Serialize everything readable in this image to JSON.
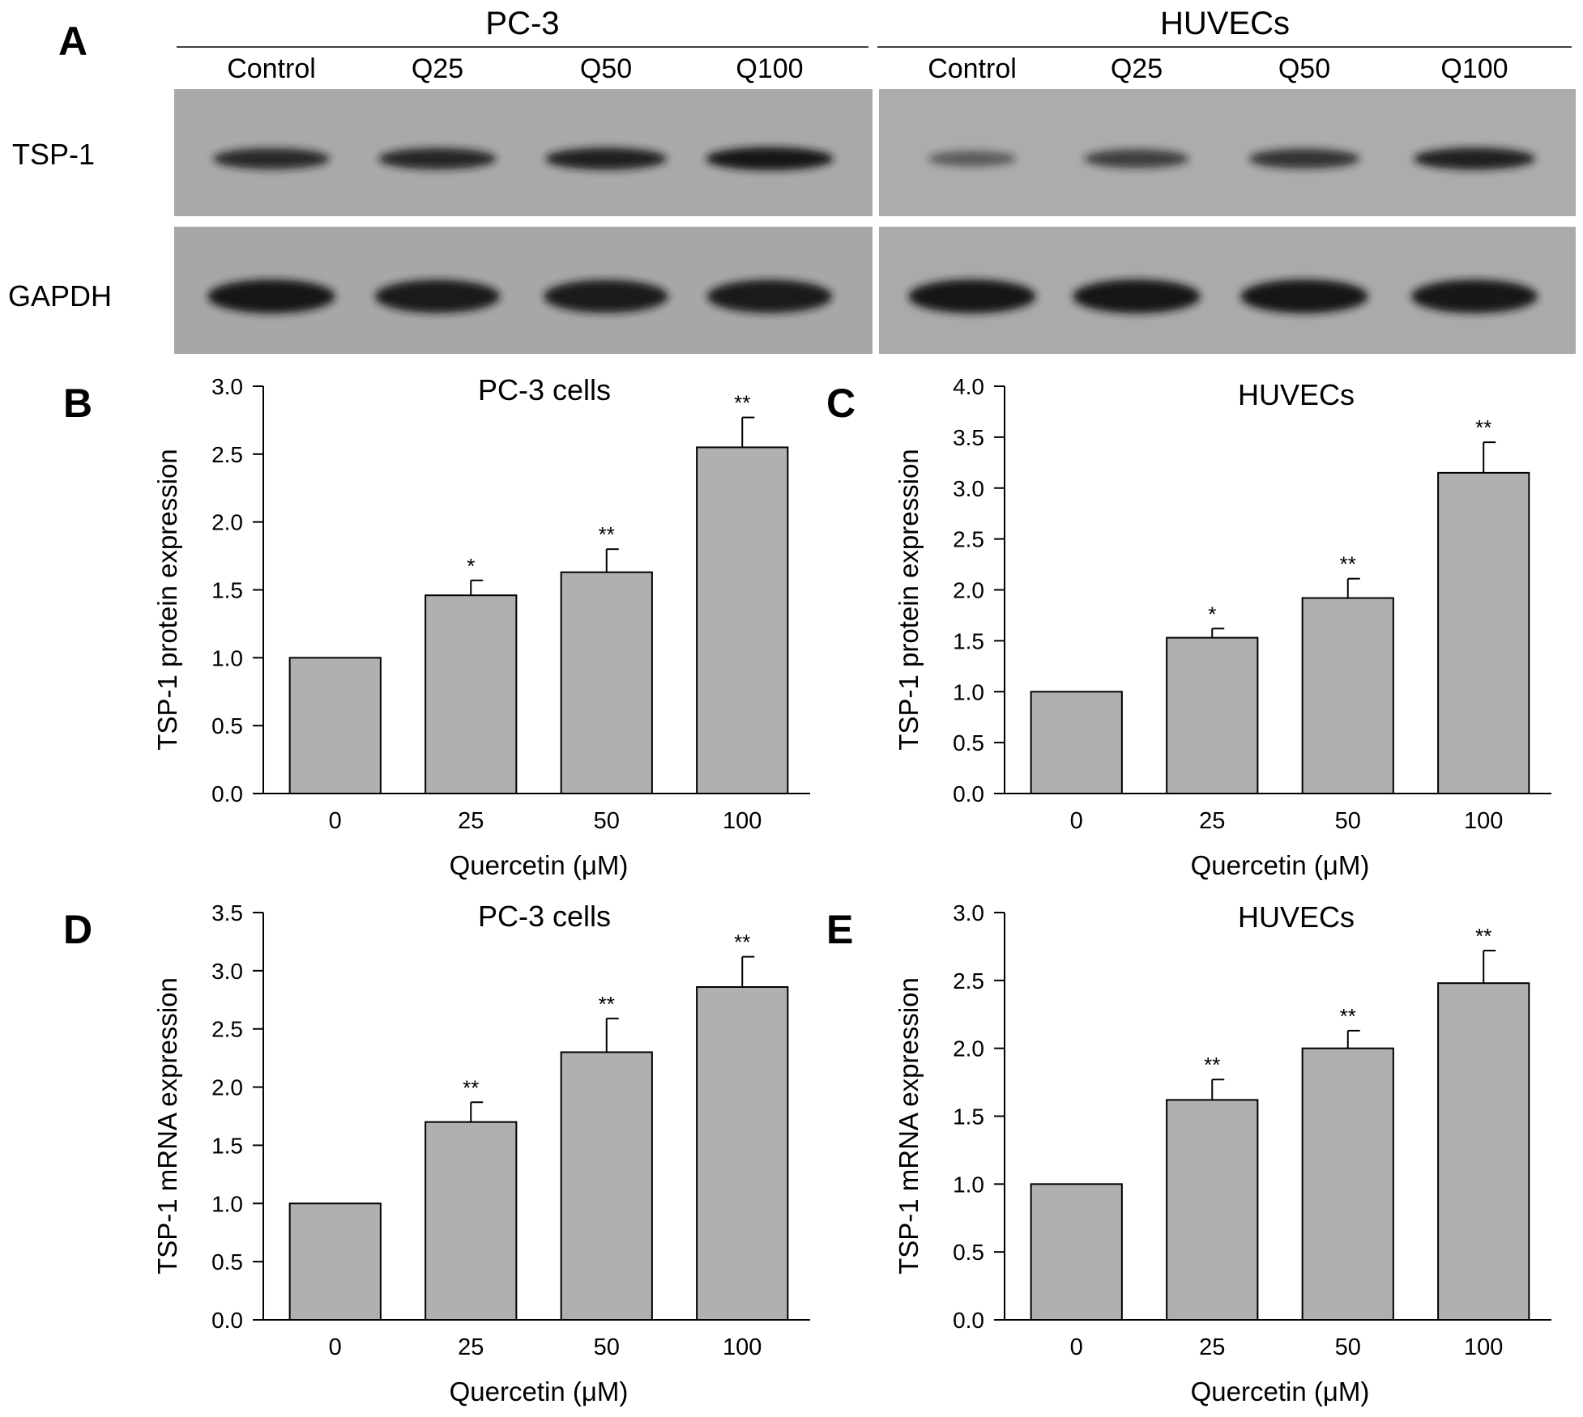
{
  "panel_a": {
    "panel_letter": "A",
    "groups": [
      {
        "name": "PC-3",
        "lanes": [
          "Control",
          "Q25",
          "Q50",
          "Q100"
        ]
      },
      {
        "name": "HUVECs",
        "lanes": [
          "Control",
          "Q25",
          "Q50",
          "Q100"
        ]
      }
    ],
    "rows": [
      {
        "label": "TSP-1",
        "band_intensity": [
          [
            0.82,
            0.84,
            0.9,
            1.0
          ],
          [
            0.35,
            0.62,
            0.72,
            0.9
          ]
        ]
      },
      {
        "label": "GAPDH",
        "band_intensity": [
          [
            1.0,
            0.96,
            0.95,
            0.96
          ],
          [
            1.0,
            1.0,
            1.0,
            0.98
          ]
        ]
      }
    ],
    "colors": {
      "blot_background": "#a9a9a9",
      "band": "#151515"
    }
  },
  "chart_data": [
    {
      "panel_letter": "B",
      "type": "bar",
      "title": "PC-3 cells",
      "xlabel": "Quercetin (μM)",
      "ylabel": "TSP-1 protein expression",
      "categories": [
        "0",
        "25",
        "50",
        "100"
      ],
      "values": [
        1.0,
        1.46,
        1.63,
        2.55
      ],
      "errors": [
        0,
        0.11,
        0.17,
        0.22
      ],
      "significance": [
        "",
        "*",
        "**",
        "**"
      ],
      "ylim": [
        0,
        3.0
      ],
      "yticks": [
        "0.0",
        "0.5",
        "1.0",
        "1.5",
        "2.0",
        "2.5",
        "3.0"
      ],
      "bar_color": "#b0b0b0"
    },
    {
      "panel_letter": "C",
      "type": "bar",
      "title": "HUVECs",
      "xlabel": "Quercetin (μM)",
      "ylabel": "TSP-1 protein expression",
      "categories": [
        "0",
        "25",
        "50",
        "100"
      ],
      "values": [
        1.0,
        1.53,
        1.92,
        3.15
      ],
      "errors": [
        0,
        0.09,
        0.19,
        0.3
      ],
      "significance": [
        "",
        "*",
        "**",
        "**"
      ],
      "ylim": [
        0,
        4.0
      ],
      "yticks": [
        "0.0",
        "0.5",
        "1.0",
        "1.5",
        "2.0",
        "2.5",
        "3.0",
        "3.5",
        "4.0"
      ],
      "bar_color": "#b0b0b0"
    },
    {
      "panel_letter": "D",
      "type": "bar",
      "title": "PC-3 cells",
      "xlabel": "Quercetin (μM)",
      "ylabel": "TSP-1 mRNA expression",
      "categories": [
        "0",
        "25",
        "50",
        "100"
      ],
      "values": [
        1.0,
        1.7,
        2.3,
        2.86
      ],
      "errors": [
        0,
        0.17,
        0.29,
        0.26
      ],
      "significance": [
        "",
        "**",
        "**",
        "**"
      ],
      "ylim": [
        0,
        3.5
      ],
      "yticks": [
        "0.0",
        "0.5",
        "1.0",
        "1.5",
        "2.0",
        "2.5",
        "3.0",
        "3.5"
      ],
      "bar_color": "#b0b0b0"
    },
    {
      "panel_letter": "E",
      "type": "bar",
      "title": "HUVECs",
      "xlabel": "Quercetin (μM)",
      "ylabel": "TSP-1 mRNA expression",
      "categories": [
        "0",
        "25",
        "50",
        "100"
      ],
      "values": [
        1.0,
        1.62,
        2.0,
        2.48
      ],
      "errors": [
        0,
        0.15,
        0.13,
        0.24
      ],
      "significance": [
        "",
        "**",
        "**",
        "**"
      ],
      "ylim": [
        0,
        3.0
      ],
      "yticks": [
        "0.0",
        "0.5",
        "1.0",
        "1.5",
        "2.0",
        "2.5",
        "3.0"
      ],
      "bar_color": "#b0b0b0"
    }
  ]
}
